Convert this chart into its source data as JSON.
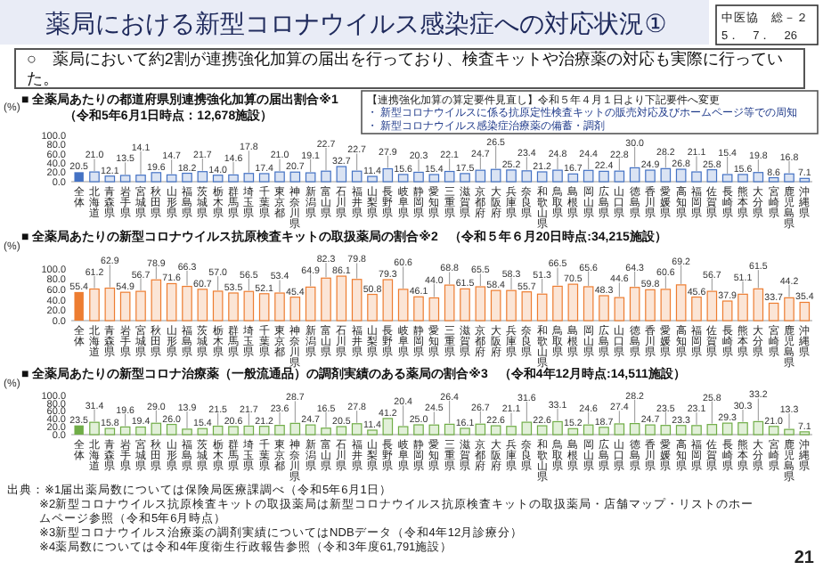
{
  "chart_data": [
    {
      "type": "bar",
      "title": "■ 全薬局あたりの都道府県別連携強化加算の届出割合※1",
      "subtitle": "（令和5年6月1日時点：12,678施設）",
      "ylabel": "(%)",
      "categories": [
        "全体",
        "北海道",
        "青森県",
        "岩手県",
        "宮城県",
        "秋田県",
        "山形県",
        "福島県",
        "茨城県",
        "栃木県",
        "群馬県",
        "埼玉県",
        "千葉県",
        "東京都",
        "神奈川県",
        "新潟県",
        "富山県",
        "石川県",
        "福井県",
        "山梨県",
        "長野県",
        "岐阜県",
        "静岡県",
        "愛知県",
        "三重県",
        "滋賀県",
        "京都府",
        "大阪府",
        "兵庫県",
        "奈良県",
        "和歌山県",
        "鳥取県",
        "島根県",
        "岡山県",
        "広島県",
        "山口県",
        "徳島県",
        "香川県",
        "愛媛県",
        "高知県",
        "福岡県",
        "佐賀県",
        "長崎県",
        "熊本県",
        "大分県",
        "宮崎県",
        "鹿児島県",
        "沖縄県"
      ],
      "values": [
        20.5,
        21.0,
        12.1,
        13.5,
        14.1,
        19.6,
        14.7,
        18.2,
        21.7,
        14.0,
        14.6,
        17.8,
        17.4,
        21.0,
        20.7,
        19.1,
        22.7,
        32.7,
        22.7,
        11.4,
        27.9,
        15.6,
        20.3,
        15.4,
        22.1,
        17.5,
        24.7,
        26.5,
        25.2,
        23.4,
        21.2,
        24.8,
        16.7,
        24.4,
        22.4,
        22.8,
        30.0,
        24.9,
        28.2,
        26.8,
        21.1,
        25.8,
        15.4,
        15.6,
        19.8,
        8.6,
        16.8,
        7.1
      ],
      "value_labels": [
        "20.5",
        "21.0",
        "12.1",
        "13.5",
        "14.1",
        "19.6",
        "14.7",
        "18.2",
        "21.7",
        "14.0",
        "14.6",
        "17.8",
        "17.4",
        "21.0",
        "20.7",
        "19.1",
        "22.7",
        "32.7",
        "22.7",
        "11.4",
        "27.9",
        "15.6",
        "20.3",
        "15.4",
        "22.1",
        "17.5",
        "24.7",
        "26.5",
        "25.2",
        "23.4",
        "21.2",
        "24.8",
        "16.7",
        "24.4",
        "22.4",
        "22.8",
        "30.0",
        "24.9",
        "28.2",
        "26.8",
        "21.1",
        "25.8",
        "15.4",
        "15.6",
        "19.8",
        "8.6",
        "16.8",
        "7.1"
      ],
      "colors": [
        "#4472c4",
        "#dae3f3",
        "#dae3f3",
        "#dae3f3",
        "#dae3f3",
        "#dae3f3",
        "#dae3f3",
        "#dae3f3",
        "#dae3f3",
        "#dae3f3",
        "#dae3f3",
        "#dae3f3",
        "#dae3f3",
        "#dae3f3",
        "#dae3f3",
        "#dae3f3",
        "#dae3f3",
        "#dae3f3",
        "#dae3f3",
        "#dae3f3",
        "#dae3f3",
        "#dae3f3",
        "#dae3f3",
        "#dae3f3",
        "#dae3f3",
        "#dae3f3",
        "#dae3f3",
        "#dae3f3",
        "#dae3f3",
        "#dae3f3",
        "#dae3f3",
        "#dae3f3",
        "#dae3f3",
        "#dae3f3",
        "#dae3f3",
        "#dae3f3",
        "#dae3f3",
        "#dae3f3",
        "#dae3f3",
        "#dae3f3",
        "#dae3f3",
        "#dae3f3",
        "#dae3f3",
        "#dae3f3",
        "#dae3f3",
        "#dae3f3",
        "#dae3f3",
        "#dae3f3"
      ],
      "ylim": [
        0,
        100
      ],
      "yticks": [
        {
          "value": 0,
          "label": "0.0"
        },
        {
          "value": 20,
          "label": "20.0"
        },
        {
          "value": 40,
          "label": "40.0"
        },
        {
          "value": 60,
          "label": "60.0"
        },
        {
          "value": 80,
          "label": "80.0"
        },
        {
          "value": 100,
          "label": "100.0"
        }
      ],
      "annotations": [
        "薬局における新型コロナウイルス感染症への対応状況①",
        "中医協　総－２",
        "5．　7．　26",
        "○　薬局において約2割が連携強化加算の届出を行っており、検査キットや治療薬の対応も実際に行っていた。",
        "【連携強化加算の算定要件見直し】令和５年４月１日より下記要件へ変更",
        "・ 新型コロナウイルスに係る抗原定性検査キットの販売対応及びホームページ等での周知",
        "・ 新型コロナウイルス感染症治療薬の備蓄・調剤"
      ]
    },
    {
      "type": "bar",
      "title": "■ 全薬局あたりの新型コロナウイルス抗原検査キットの取扱薬局の割合※2",
      "subtitle": "（令和５年６月20日時点:34,215施設）",
      "ylabel": "(%)",
      "categories": [
        "全体",
        "北海道",
        "青森県",
        "岩手県",
        "宮城県",
        "秋田県",
        "山形県",
        "福島県",
        "茨城県",
        "栃木県",
        "群馬県",
        "埼玉県",
        "千葉県",
        "東京都",
        "神奈川県",
        "新潟県",
        "富山県",
        "石川県",
        "福井県",
        "山梨県",
        "長野県",
        "岐阜県",
        "静岡県",
        "愛知県",
        "三重県",
        "滋賀県",
        "京都府",
        "大阪府",
        "兵庫県",
        "奈良県",
        "和歌山県",
        "鳥取県",
        "島根県",
        "岡山県",
        "広島県",
        "山口県",
        "徳島県",
        "香川県",
        "愛媛県",
        "高知県",
        "福岡県",
        "佐賀県",
        "長崎県",
        "熊本県",
        "大分県",
        "宮崎県",
        "鹿児島県",
        "沖縄県"
      ],
      "values": [
        55.4,
        61.2,
        62.9,
        54.9,
        56.7,
        78.9,
        71.6,
        66.3,
        60.7,
        57.0,
        53.5,
        56.5,
        52.1,
        53.4,
        45.4,
        64.9,
        82.3,
        86.1,
        79.8,
        50.8,
        79.3,
        60.6,
        46.1,
        44.0,
        68.8,
        61.5,
        65.5,
        58.4,
        58.3,
        55.7,
        51.3,
        66.5,
        70.5,
        65.6,
        48.3,
        44.6,
        64.3,
        59.8,
        60.6,
        69.2,
        45.6,
        56.7,
        37.9,
        51.1,
        61.5,
        33.7,
        44.2,
        35.4
      ],
      "value_labels": [
        "55.4",
        "61.2",
        "62.9",
        "54.9",
        "56.7",
        "78.9",
        "71.6",
        "66.3",
        "60.7",
        "57.0",
        "53.5",
        "56.5",
        "52.1",
        "53.4",
        "45.4",
        "64.9",
        "82.3",
        "86.1",
        "79.8",
        "50.8",
        "79.3",
        "60.6",
        "46.1",
        "44.0",
        "68.8",
        "61.5",
        "65.5",
        "58.4",
        "58.3",
        "55.7",
        "51.3",
        "66.5",
        "70.5",
        "65.6",
        "48.3",
        "44.6",
        "64.3",
        "59.8",
        "60.6",
        "69.2",
        "45.6",
        "56.7",
        "37.9",
        "51.1",
        "61.5",
        "33.7",
        "44.2",
        "35.4"
      ],
      "colors": [
        "#ed7d31",
        "#fbe5d6",
        "#fbe5d6",
        "#fbe5d6",
        "#fbe5d6",
        "#fbe5d6",
        "#fbe5d6",
        "#fbe5d6",
        "#fbe5d6",
        "#fbe5d6",
        "#fbe5d6",
        "#fbe5d6",
        "#fbe5d6",
        "#fbe5d6",
        "#fbe5d6",
        "#fbe5d6",
        "#fbe5d6",
        "#fbe5d6",
        "#fbe5d6",
        "#fbe5d6",
        "#fbe5d6",
        "#fbe5d6",
        "#fbe5d6",
        "#fbe5d6",
        "#fbe5d6",
        "#fbe5d6",
        "#fbe5d6",
        "#fbe5d6",
        "#fbe5d6",
        "#fbe5d6",
        "#fbe5d6",
        "#fbe5d6",
        "#fbe5d6",
        "#fbe5d6",
        "#fbe5d6",
        "#fbe5d6",
        "#fbe5d6",
        "#fbe5d6",
        "#fbe5d6",
        "#fbe5d6",
        "#fbe5d6",
        "#fbe5d6",
        "#fbe5d6",
        "#fbe5d6",
        "#fbe5d6",
        "#fbe5d6",
        "#fbe5d6",
        "#fbe5d6"
      ],
      "ylim": [
        0,
        100
      ],
      "yticks": [
        {
          "value": 0,
          "label": "0.0"
        },
        {
          "value": 20,
          "label": "20.0"
        },
        {
          "value": 40,
          "label": "40.0"
        },
        {
          "value": 60,
          "label": "60.0"
        },
        {
          "value": 80,
          "label": "80.0"
        },
        {
          "value": 100,
          "label": "100.0"
        }
      ]
    },
    {
      "type": "bar",
      "title": "■ 全薬局あたりの新型コロナ治療薬（一般流通品）の調剤実績のある薬局の割合※3",
      "subtitle": "（令和4年12月時点:14,511施設）",
      "ylabel": "(%)",
      "categories": [
        "全体",
        "北海道",
        "青森県",
        "岩手県",
        "宮城県",
        "秋田県",
        "山形県",
        "福島県",
        "茨城県",
        "栃木県",
        "群馬県",
        "埼玉県",
        "千葉県",
        "東京都",
        "神奈川県",
        "新潟県",
        "富山県",
        "石川県",
        "福井県",
        "山梨県",
        "長野県",
        "岐阜県",
        "静岡県",
        "愛知県",
        "三重県",
        "滋賀県",
        "京都府",
        "大阪府",
        "兵庫県",
        "奈良県",
        "和歌山県",
        "鳥取県",
        "島根県",
        "岡山県",
        "広島県",
        "山口県",
        "徳島県",
        "香川県",
        "愛媛県",
        "高知県",
        "福岡県",
        "佐賀県",
        "長崎県",
        "熊本県",
        "大分県",
        "宮崎県",
        "鹿児島県",
        "沖縄県"
      ],
      "values": [
        23.5,
        31.4,
        15.8,
        19.6,
        19.4,
        29.0,
        26.0,
        13.9,
        15.4,
        21.5,
        20.6,
        21.7,
        21.2,
        23.6,
        28.7,
        24.7,
        16.5,
        20.5,
        27.8,
        11.4,
        41.2,
        20.4,
        25.0,
        24.5,
        26.4,
        16.1,
        26.7,
        22.6,
        21.1,
        31.6,
        22.6,
        33.1,
        15.2,
        24.6,
        18.7,
        27.4,
        28.2,
        24.7,
        23.5,
        23.3,
        23.1,
        25.8,
        29.3,
        30.3,
        33.2,
        21.0,
        13.3,
        7.1
      ],
      "value_labels": [
        "23.5",
        "31.4",
        "15.8",
        "19.6",
        "19.4",
        "29.0",
        "26.0",
        "13.9",
        "15.4",
        "21.5",
        "20.6",
        "21.7",
        "21.2",
        "23.6",
        "28.7",
        "24.7",
        "16.5",
        "20.5",
        "27.8",
        "11.4",
        "41.2",
        "20.4",
        "25.0",
        "24.5",
        "26.4",
        "16.1",
        "26.7",
        "22.6",
        "21.1",
        "31.6",
        "22.6",
        "33.1",
        "15.2",
        "24.6",
        "18.7",
        "27.4",
        "28.2",
        "24.7",
        "23.5",
        "23.3",
        "23.1",
        "25.8",
        "29.3",
        "30.3",
        "33.2",
        "21.0",
        "13.3",
        "7.1"
      ],
      "colors": [
        "#70ad47",
        "#e2f0d9",
        "#e2f0d9",
        "#e2f0d9",
        "#e2f0d9",
        "#e2f0d9",
        "#e2f0d9",
        "#e2f0d9",
        "#e2f0d9",
        "#e2f0d9",
        "#e2f0d9",
        "#e2f0d9",
        "#e2f0d9",
        "#e2f0d9",
        "#e2f0d9",
        "#e2f0d9",
        "#e2f0d9",
        "#e2f0d9",
        "#e2f0d9",
        "#e2f0d9",
        "#e2f0d9",
        "#e2f0d9",
        "#e2f0d9",
        "#e2f0d9",
        "#e2f0d9",
        "#e2f0d9",
        "#e2f0d9",
        "#e2f0d9",
        "#e2f0d9",
        "#e2f0d9",
        "#e2f0d9",
        "#e2f0d9",
        "#e2f0d9",
        "#e2f0d9",
        "#e2f0d9",
        "#e2f0d9",
        "#e2f0d9",
        "#e2f0d9",
        "#e2f0d9",
        "#e2f0d9",
        "#e2f0d9",
        "#e2f0d9",
        "#e2f0d9",
        "#e2f0d9",
        "#e2f0d9",
        "#e2f0d9",
        "#e2f0d9",
        "#e2f0d9"
      ],
      "ylim": [
        0,
        100
      ],
      "yticks": [
        {
          "value": 0,
          "label": "0.0"
        },
        {
          "value": 20,
          "label": "20.0"
        },
        {
          "value": 40,
          "label": "40.0"
        },
        {
          "value": 60,
          "label": "60.0"
        },
        {
          "value": 80,
          "label": "80.0"
        },
        {
          "value": 100,
          "label": "100.0"
        }
      ],
      "annotations": [
        "出典：※1届出薬局数については保険局医療課調べ（令和5年6月1日）",
        "※2新型コロナウイルス抗原検査キットの取扱薬局は新型コロナウイルス抗原検査キットの取扱薬局・店舗マップ・リストのホームページ参照（令和5年6月時点）",
        "※3新型コロナウイルス治療薬の調剤実績についてはNDBデータ（令和4年12月診療分）",
        "※4薬局数については令和4年度衛生行政報告参照（令和3年度61,791施設）",
        "21"
      ]
    }
  ]
}
